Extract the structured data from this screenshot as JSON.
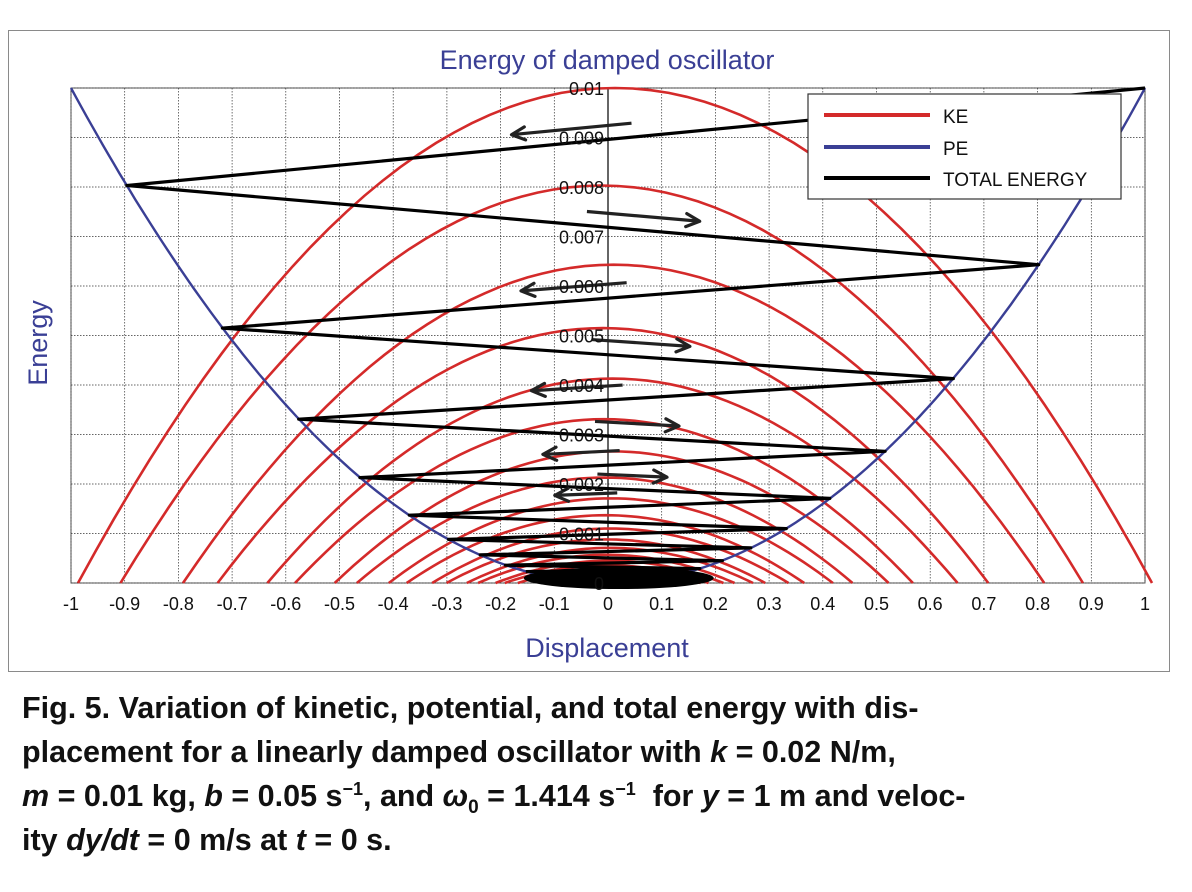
{
  "chart_data": {
    "type": "line",
    "title": "Energy of damped oscillator",
    "xlabel": "Displacement",
    "ylabel": "Energy",
    "xlim": [
      -1,
      1
    ],
    "ylim": [
      0,
      0.01
    ],
    "xticks": [
      "-1",
      "-0.9",
      "-0.8",
      "-0.7",
      "-0.6",
      "-0.5",
      "-0.4",
      "-0.3",
      "-0.2",
      "-0.1",
      "0",
      "0.1",
      "0.2",
      "0.3",
      "0.4",
      "0.5",
      "0.6",
      "0.7",
      "0.8",
      "0.9",
      "1"
    ],
    "yticks": [
      "0",
      "0.001",
      "0.002",
      "0.003",
      "0.004",
      "0.005",
      "0.006",
      "0.007",
      "0.008",
      "0.009",
      "0.01"
    ],
    "grid": true,
    "legend_position": "top-right",
    "colors": {
      "KE": "#d42a2a",
      "PE": "#3a3f95",
      "TOTAL ENERGY": "#000000",
      "text": "#3a3f95"
    },
    "params": {
      "k": 0.02,
      "m": 0.01,
      "b": 0.05,
      "omega0": 1.414,
      "y0": 1,
      "v0": 0
    },
    "turning_points": [
      {
        "x": 1.0,
        "E": 0.01
      },
      {
        "x": -0.896,
        "E": 0.00803
      },
      {
        "x": 0.802,
        "E": 0.00643
      },
      {
        "x": -0.718,
        "E": 0.00515
      },
      {
        "x": 0.643,
        "E": 0.00413
      },
      {
        "x": -0.576,
        "E": 0.00331
      },
      {
        "x": 0.516,
        "E": 0.00266
      },
      {
        "x": -0.462,
        "E": 0.00213
      },
      {
        "x": 0.413,
        "E": 0.00171
      },
      {
        "x": -0.37,
        "E": 0.00137
      },
      {
        "x": 0.332,
        "E": 0.0011
      },
      {
        "x": -0.297,
        "E": 0.00088
      },
      {
        "x": 0.266,
        "E": 0.00071
      },
      {
        "x": -0.238,
        "E": 0.00057
      },
      {
        "x": 0.213,
        "E": 0.00045
      },
      {
        "x": -0.191,
        "E": 0.00036
      },
      {
        "x": 0.171,
        "E": 0.00029
      },
      {
        "x": -0.153,
        "E": 0.00023
      }
    ],
    "series": [
      {
        "name": "KE",
        "kind": "ke"
      },
      {
        "name": "PE",
        "kind": "pe"
      },
      {
        "name": "TOTAL ENERGY",
        "kind": "total"
      }
    ],
    "direction_arrows": [
      "left",
      "right",
      "left",
      "right",
      "left",
      "right",
      "left",
      "right",
      "left"
    ]
  },
  "caption": {
    "line1": "Fig. 5. Variation of kinetic, potential, and total energy with dis-",
    "line2": "placement for a linearly damped oscillator with",
    "k_sym": "k",
    "k_val": " = 0.02 N/m,",
    "m_sym": "m",
    "m_val": " = 0.01 kg, ",
    "b_sym": "b",
    "b_val": " = 0.05 s",
    "b_exp": "−1",
    "and_text": ", and ",
    "omega_sym": "ω",
    "omega_sub": "0",
    "omega_val": " = 1.414 s",
    "omega_exp": "−1",
    "for_text": "  for ",
    "y_sym": "y",
    "y_val": " = 1 m and veloc-",
    "ity_text": "ity ",
    "dydt_sym": "dy/dt",
    "dydt_val": " = 0 m/s at ",
    "t_sym": "t",
    "t_val": " = 0 s."
  }
}
